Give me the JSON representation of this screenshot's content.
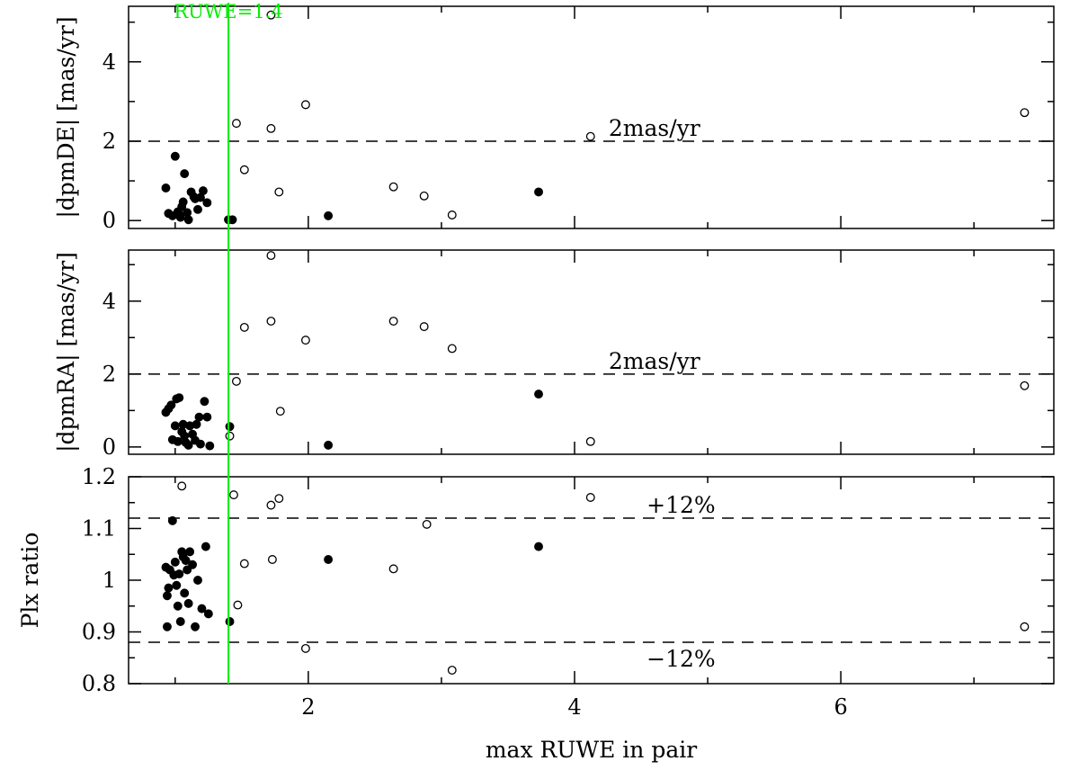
{
  "chart_data": {
    "type": "scatter",
    "xlabel": "max RUWE in pair",
    "xlim": [
      0.65,
      7.6
    ],
    "xticks": [
      2,
      4,
      6
    ],
    "vline": {
      "x": 1.4,
      "label": "RUWE=1.4",
      "color": "#00ee00"
    },
    "panels": [
      {
        "id": "dpmDE",
        "ylabel": "|dpmDE| [mas/yr]",
        "ylim": [
          -0.2,
          5.4
        ],
        "yticks": [
          0,
          2,
          4
        ],
        "hlines": [
          {
            "y": 2,
            "label": "2mas/yr",
            "label_x": 4.6
          }
        ],
        "series": [
          {
            "style": "filled",
            "points": [
              [
                0.93,
                0.82
              ],
              [
                0.95,
                0.18
              ],
              [
                0.98,
                0.12
              ],
              [
                1.0,
                1.62
              ],
              [
                1.02,
                0.22
              ],
              [
                1.03,
                0.15
              ],
              [
                1.04,
                0.08
              ],
              [
                1.05,
                0.35
              ],
              [
                1.06,
                0.47
              ],
              [
                1.07,
                1.18
              ],
              [
                1.09,
                0.2
              ],
              [
                1.1,
                0.02
              ],
              [
                1.12,
                0.72
              ],
              [
                1.14,
                0.6
              ],
              [
                1.15,
                0.55
              ],
              [
                1.17,
                0.28
              ],
              [
                1.19,
                0.58
              ],
              [
                1.21,
                0.75
              ],
              [
                1.24,
                0.45
              ],
              [
                1.4,
                0.02
              ],
              [
                1.43,
                0.02
              ],
              [
                2.15,
                0.12
              ],
              [
                3.73,
                0.72
              ]
            ]
          },
          {
            "style": "open",
            "points": [
              [
                1.46,
                2.45
              ],
              [
                1.52,
                1.28
              ],
              [
                1.72,
                5.18
              ],
              [
                1.72,
                2.32
              ],
              [
                1.78,
                0.72
              ],
              [
                1.98,
                2.92
              ],
              [
                2.64,
                0.85
              ],
              [
                2.87,
                0.62
              ],
              [
                3.08,
                0.14
              ],
              [
                4.12,
                2.12
              ],
              [
                7.38,
                2.72
              ]
            ]
          }
        ]
      },
      {
        "id": "dpmRA",
        "ylabel": "|dpmRA| [mas/yr]",
        "ylim": [
          -0.2,
          5.4
        ],
        "yticks": [
          0,
          2,
          4
        ],
        "hlines": [
          {
            "y": 2,
            "label": "2mas/yr",
            "label_x": 4.6
          }
        ],
        "series": [
          {
            "style": "filled",
            "points": [
              [
                0.93,
                0.95
              ],
              [
                0.95,
                1.05
              ],
              [
                0.97,
                1.15
              ],
              [
                0.98,
                0.2
              ],
              [
                1.0,
                0.58
              ],
              [
                1.01,
                1.32
              ],
              [
                1.02,
                0.15
              ],
              [
                1.03,
                1.35
              ],
              [
                1.05,
                0.42
              ],
              [
                1.06,
                0.62
              ],
              [
                1.07,
                0.3
              ],
              [
                1.08,
                0.12
              ],
              [
                1.1,
                0.05
              ],
              [
                1.11,
                0.58
              ],
              [
                1.13,
                0.35
              ],
              [
                1.15,
                0.18
              ],
              [
                1.16,
                0.62
              ],
              [
                1.18,
                0.82
              ],
              [
                1.19,
                0.08
              ],
              [
                1.22,
                1.25
              ],
              [
                1.24,
                0.82
              ],
              [
                1.26,
                0.03
              ],
              [
                1.41,
                0.56
              ],
              [
                2.15,
                0.05
              ],
              [
                3.73,
                1.45
              ]
            ]
          },
          {
            "style": "open",
            "points": [
              [
                1.41,
                0.3
              ],
              [
                1.46,
                1.8
              ],
              [
                1.52,
                3.28
              ],
              [
                1.72,
                5.25
              ],
              [
                1.72,
                3.45
              ],
              [
                1.79,
                0.98
              ],
              [
                1.98,
                2.93
              ],
              [
                2.64,
                3.45
              ],
              [
                2.87,
                3.3
              ],
              [
                3.08,
                2.7
              ],
              [
                4.12,
                0.15
              ],
              [
                7.38,
                1.68
              ]
            ]
          }
        ]
      },
      {
        "id": "plx",
        "ylabel": "Plx ratio",
        "ylim": [
          0.8,
          1.2
        ],
        "yticks": [
          0.8,
          0.9,
          1,
          1.1,
          1.2
        ],
        "ytick_labels": [
          "0.8",
          "0.9",
          "1",
          "1.1",
          "1.2"
        ],
        "hlines": [
          {
            "y": 1.12,
            "label": "+12%",
            "label_x": 4.8
          },
          {
            "y": 0.88,
            "label": "−12%",
            "label_x": 4.8
          }
        ],
        "series": [
          {
            "style": "filled",
            "points": [
              [
                0.93,
                1.025
              ],
              [
                0.94,
                0.97
              ],
              [
                0.94,
                0.91
              ],
              [
                0.95,
                0.985
              ],
              [
                0.96,
                1.02
              ],
              [
                0.98,
                1.115
              ],
              [
                0.99,
                1.01
              ],
              [
                1.0,
                1.035
              ],
              [
                1.01,
                0.99
              ],
              [
                1.02,
                0.95
              ],
              [
                1.03,
                1.012
              ],
              [
                1.04,
                0.92
              ],
              [
                1.05,
                1.055
              ],
              [
                1.06,
                1.045
              ],
              [
                1.07,
                0.975
              ],
              [
                1.08,
                1.038
              ],
              [
                1.09,
                1.02
              ],
              [
                1.1,
                0.955
              ],
              [
                1.11,
                1.055
              ],
              [
                1.13,
                1.03
              ],
              [
                1.15,
                0.91
              ],
              [
                1.17,
                1.0
              ],
              [
                1.2,
                0.945
              ],
              [
                1.23,
                1.065
              ],
              [
                1.25,
                0.935
              ],
              [
                1.41,
                0.92
              ],
              [
                2.15,
                1.04
              ],
              [
                3.73,
                1.065
              ]
            ]
          },
          {
            "style": "open",
            "points": [
              [
                1.05,
                1.182
              ],
              [
                1.44,
                1.165
              ],
              [
                1.47,
                0.952
              ],
              [
                1.52,
                1.032
              ],
              [
                1.72,
                1.145
              ],
              [
                1.73,
                1.04
              ],
              [
                1.78,
                1.158
              ],
              [
                1.98,
                0.868
              ],
              [
                2.64,
                1.022
              ],
              [
                2.89,
                1.108
              ],
              [
                3.08,
                0.826
              ],
              [
                4.12,
                1.16
              ],
              [
                7.38,
                0.91
              ]
            ]
          }
        ]
      }
    ]
  }
}
